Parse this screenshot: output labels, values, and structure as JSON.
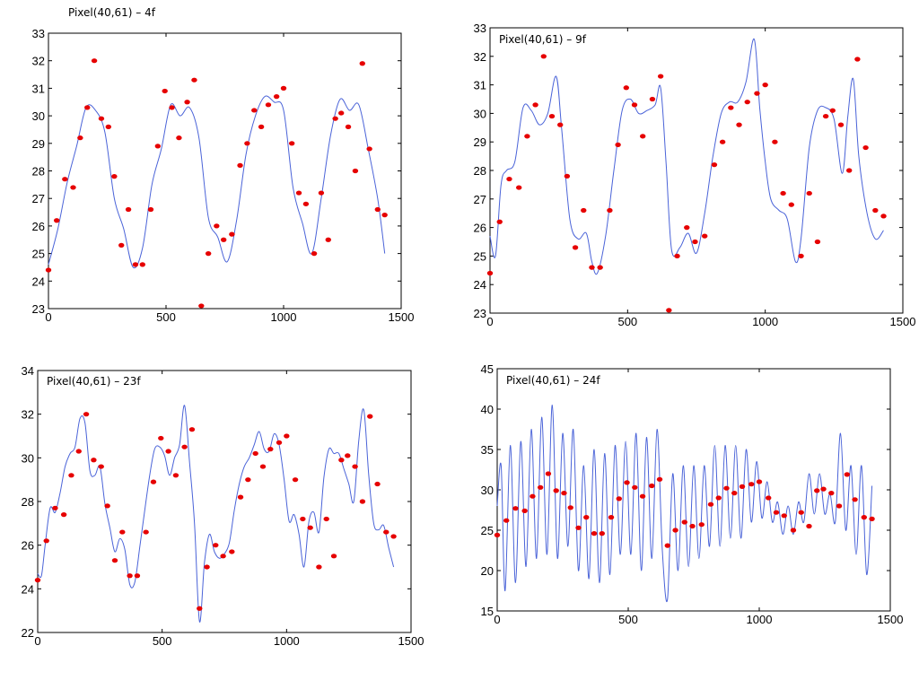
{
  "chart_data": [
    {
      "type": "scatter",
      "title": "Pixel(40,61) – 4f",
      "xlim": [
        0,
        1500
      ],
      "ylim": [
        23,
        33
      ],
      "xticks": [
        0,
        500,
        1000,
        1500
      ],
      "yticks": [
        23,
        24,
        25,
        26,
        27,
        28,
        29,
        30,
        31,
        32,
        33
      ],
      "series": [
        {
          "style": "markers",
          "color": "#e60000",
          "x": [
            0,
            35,
            70,
            105,
            135,
            165,
            195,
            225,
            255,
            280,
            310,
            340,
            370,
            400,
            435,
            465,
            495,
            525,
            555,
            590,
            620,
            650,
            680,
            715,
            745,
            780,
            815,
            845,
            875,
            905,
            935,
            970,
            1000,
            1035,
            1065,
            1095,
            1130,
            1160,
            1190,
            1220,
            1245,
            1275,
            1305,
            1335,
            1365,
            1400,
            1430
          ],
          "y": [
            24.4,
            26.2,
            27.7,
            27.4,
            29.2,
            30.3,
            32.0,
            29.9,
            29.6,
            27.8,
            25.3,
            26.6,
            24.6,
            24.6,
            26.6,
            28.9,
            30.9,
            30.3,
            29.2,
            30.5,
            31.3,
            23.1,
            25.0,
            26.0,
            25.5,
            25.7,
            28.2,
            29.0,
            30.2,
            29.6,
            30.4,
            30.7,
            31.0,
            29.0,
            27.2,
            26.8,
            25.0,
            27.2,
            25.5,
            29.9,
            30.1,
            29.6,
            28.0,
            31.9,
            28.8,
            26.6,
            26.4
          ]
        },
        {
          "style": "line",
          "color": "#4a63d8",
          "smooth": "low",
          "x": [
            0,
            40,
            80,
            120,
            160,
            200,
            240,
            280,
            320,
            360,
            400,
            440,
            480,
            520,
            560,
            600,
            640,
            680,
            720,
            760,
            800,
            840,
            880,
            920,
            960,
            1000,
            1040,
            1080,
            1120,
            1160,
            1200,
            1240,
            1280,
            1320,
            1360,
            1400,
            1430
          ],
          "y": [
            24.6,
            25.9,
            27.6,
            28.9,
            30.3,
            30.2,
            29.4,
            27.0,
            25.9,
            24.5,
            25.2,
            27.5,
            28.8,
            30.4,
            30.0,
            30.3,
            29.2,
            26.3,
            25.6,
            24.7,
            26.2,
            28.6,
            30.0,
            30.7,
            30.5,
            30.2,
            27.4,
            26.1,
            25.0,
            27.0,
            29.3,
            30.6,
            30.2,
            30.4,
            28.8,
            27.0,
            25.0
          ]
        }
      ]
    },
    {
      "type": "scatter",
      "title": "Pixel(40,61) – 9f",
      "xlim": [
        0,
        1500
      ],
      "ylim": [
        23,
        33
      ],
      "xticks": [
        0,
        500,
        1000,
        1500
      ],
      "yticks": [
        23,
        24,
        25,
        26,
        27,
        28,
        29,
        30,
        31,
        32,
        33
      ],
      "series": [
        {
          "style": "markers",
          "color": "#e60000",
          "x": [
            0,
            35,
            70,
            105,
            135,
            165,
            195,
            225,
            255,
            280,
            310,
            340,
            370,
            400,
            435,
            465,
            495,
            525,
            555,
            590,
            620,
            650,
            680,
            715,
            745,
            780,
            815,
            845,
            875,
            905,
            935,
            970,
            1000,
            1035,
            1065,
            1095,
            1130,
            1160,
            1190,
            1220,
            1245,
            1275,
            1305,
            1335,
            1365,
            1400,
            1430
          ],
          "y": [
            24.4,
            26.2,
            27.7,
            27.4,
            29.2,
            30.3,
            32.0,
            29.9,
            29.6,
            27.8,
            25.3,
            26.6,
            24.6,
            24.6,
            26.6,
            28.9,
            30.9,
            30.3,
            29.2,
            30.5,
            31.3,
            23.1,
            25.0,
            26.0,
            25.5,
            25.7,
            28.2,
            29.0,
            30.2,
            29.6,
            30.4,
            30.7,
            31.0,
            29.0,
            27.2,
            26.8,
            25.0,
            27.2,
            25.5,
            29.9,
            30.1,
            29.6,
            28.0,
            31.9,
            28.8,
            26.6,
            26.4
          ]
        },
        {
          "style": "line",
          "color": "#4a63d8",
          "smooth": "mid",
          "x": [
            0,
            20,
            40,
            60,
            90,
            120,
            150,
            180,
            210,
            240,
            260,
            290,
            320,
            350,
            370,
            390,
            420,
            450,
            480,
            510,
            540,
            570,
            600,
            620,
            640,
            660,
            690,
            720,
            750,
            780,
            810,
            840,
            870,
            900,
            930,
            960,
            980,
            1000,
            1020,
            1050,
            1080,
            1110,
            1130,
            1160,
            1190,
            1220,
            1250,
            1280,
            1300,
            1320,
            1340,
            1370,
            1400,
            1430
          ],
          "y": [
            25.7,
            25.0,
            27.5,
            28.0,
            28.3,
            30.2,
            30.1,
            29.6,
            30.0,
            31.3,
            29.5,
            26.3,
            25.6,
            25.8,
            24.8,
            24.4,
            25.7,
            28.0,
            30.1,
            30.5,
            30.0,
            30.1,
            30.3,
            30.9,
            28.2,
            25.2,
            25.3,
            25.8,
            25.1,
            26.5,
            28.5,
            30.0,
            30.4,
            30.4,
            31.1,
            32.6,
            30.2,
            28.3,
            27.0,
            26.6,
            26.3,
            24.8,
            25.6,
            28.8,
            30.1,
            30.2,
            29.8,
            27.9,
            29.9,
            31.2,
            28.5,
            26.5,
            25.6,
            25.9
          ]
        }
      ]
    },
    {
      "type": "scatter",
      "title": "Pixel(40,61) – 23f",
      "xlim": [
        0,
        1500
      ],
      "ylim": [
        22,
        34
      ],
      "xticks": [
        0,
        500,
        1000,
        1500
      ],
      "yticks": [
        22,
        24,
        26,
        28,
        30,
        32,
        34
      ],
      "series": [
        {
          "style": "markers",
          "color": "#e60000",
          "x": [
            0,
            35,
            70,
            105,
            135,
            165,
            195,
            225,
            255,
            280,
            310,
            340,
            370,
            400,
            435,
            465,
            495,
            525,
            555,
            590,
            620,
            650,
            680,
            715,
            745,
            780,
            815,
            845,
            875,
            905,
            935,
            970,
            1000,
            1035,
            1065,
            1095,
            1130,
            1160,
            1190,
            1220,
            1245,
            1275,
            1305,
            1335,
            1365,
            1400,
            1430
          ],
          "y": [
            24.4,
            26.2,
            27.7,
            27.4,
            29.2,
            30.3,
            32.0,
            29.9,
            29.6,
            27.8,
            25.3,
            26.6,
            24.6,
            24.6,
            26.6,
            28.9,
            30.9,
            30.3,
            29.2,
            30.5,
            31.3,
            23.1,
            25.0,
            26.0,
            25.5,
            25.7,
            28.2,
            29.0,
            30.2,
            29.6,
            30.4,
            30.7,
            31.0,
            29.0,
            27.2,
            26.8,
            25.0,
            27.2,
            25.5,
            29.9,
            30.1,
            29.6,
            28.0,
            31.9,
            28.8,
            26.6,
            26.4
          ]
        },
        {
          "style": "line",
          "color": "#4a63d8",
          "smooth": "high",
          "x": [
            0,
            15,
            30,
            50,
            70,
            90,
            110,
            130,
            150,
            170,
            190,
            210,
            230,
            250,
            270,
            290,
            310,
            330,
            350,
            370,
            390,
            410,
            430,
            450,
            470,
            490,
            510,
            530,
            550,
            570,
            590,
            610,
            630,
            650,
            670,
            690,
            710,
            730,
            750,
            770,
            790,
            810,
            830,
            850,
            870,
            890,
            910,
            930,
            950,
            970,
            990,
            1010,
            1030,
            1050,
            1070,
            1090,
            1110,
            1130,
            1150,
            1170,
            1190,
            1210,
            1230,
            1250,
            1270,
            1290,
            1310,
            1330,
            1350,
            1370,
            1390,
            1410,
            1430
          ],
          "y": [
            24.7,
            24.6,
            26.0,
            27.7,
            27.5,
            28.4,
            29.6,
            30.2,
            30.5,
            31.8,
            31.6,
            29.4,
            29.2,
            29.6,
            27.9,
            26.8,
            25.7,
            26.3,
            25.8,
            24.2,
            24.3,
            25.9,
            27.6,
            29.2,
            30.4,
            30.5,
            30.1,
            29.2,
            30.0,
            30.6,
            32.4,
            29.8,
            27.0,
            22.5,
            25.2,
            26.5,
            25.7,
            25.4,
            25.6,
            26.1,
            27.6,
            28.8,
            29.6,
            30.0,
            30.6,
            31.2,
            30.4,
            30.3,
            31.1,
            30.6,
            29.0,
            27.1,
            27.4,
            26.5,
            25.0,
            27.1,
            27.5,
            26.6,
            29.1,
            30.4,
            30.2,
            30.2,
            29.5,
            28.8,
            28.0,
            30.8,
            32.2,
            29.2,
            27.0,
            26.7,
            26.9,
            25.9,
            25.0
          ]
        }
      ]
    },
    {
      "type": "scatter",
      "title": "Pixel(40,61) – 24f",
      "xlim": [
        0,
        1500
      ],
      "ylim": [
        15,
        45
      ],
      "xticks": [
        0,
        500,
        1000,
        1500
      ],
      "yticks": [
        15,
        20,
        25,
        30,
        35,
        40,
        45
      ],
      "series": [
        {
          "style": "markers",
          "color": "#e60000",
          "x": [
            0,
            35,
            70,
            105,
            135,
            165,
            195,
            225,
            255,
            280,
            310,
            340,
            370,
            400,
            435,
            465,
            495,
            525,
            555,
            590,
            620,
            650,
            680,
            715,
            745,
            780,
            815,
            845,
            875,
            905,
            935,
            970,
            1000,
            1035,
            1065,
            1095,
            1130,
            1160,
            1190,
            1220,
            1245,
            1275,
            1305,
            1335,
            1365,
            1400,
            1430
          ],
          "y": [
            24.4,
            26.2,
            27.7,
            27.4,
            29.2,
            30.3,
            32.0,
            29.9,
            29.6,
            27.8,
            25.3,
            26.6,
            24.6,
            24.6,
            26.6,
            28.9,
            30.9,
            30.3,
            29.2,
            30.5,
            31.3,
            23.1,
            25.0,
            26.0,
            25.5,
            25.7,
            28.2,
            29.0,
            30.2,
            29.6,
            30.4,
            30.7,
            31.0,
            29.0,
            27.2,
            26.8,
            25.0,
            27.2,
            25.5,
            29.9,
            30.1,
            29.6,
            28.0,
            31.9,
            28.8,
            26.6,
            26.4
          ]
        },
        {
          "style": "line",
          "color": "#4a63d8",
          "note": "oscillating",
          "x": [
            0,
            15,
            30,
            50,
            70,
            90,
            110,
            130,
            150,
            170,
            190,
            210,
            230,
            250,
            270,
            290,
            310,
            330,
            350,
            370,
            390,
            410,
            430,
            450,
            470,
            490,
            510,
            530,
            550,
            570,
            590,
            610,
            630,
            650,
            670,
            690,
            710,
            730,
            750,
            770,
            790,
            810,
            830,
            850,
            870,
            890,
            910,
            930,
            950,
            970,
            990,
            1010,
            1030,
            1050,
            1070,
            1090,
            1110,
            1130,
            1150,
            1170,
            1190,
            1210,
            1230,
            1250,
            1270,
            1290,
            1310,
            1330,
            1350,
            1370,
            1390,
            1410,
            1430
          ],
          "y": [
            28,
            33,
            17.5,
            35.5,
            18.5,
            36,
            20.5,
            37.5,
            21.5,
            39,
            22,
            40.5,
            21.5,
            37,
            23,
            37.5,
            20,
            33,
            19,
            35,
            18.5,
            34.5,
            19.5,
            35.5,
            22,
            36,
            22,
            37,
            20,
            36.5,
            21.5,
            37.5,
            22.5,
            16.5,
            32,
            20,
            33,
            20.5,
            33,
            21.5,
            33,
            23,
            35.5,
            23,
            35.5,
            24,
            35.5,
            24,
            35,
            26,
            33.5,
            26.5,
            31,
            26,
            28.5,
            24.5,
            28,
            24.5,
            28.5,
            26,
            32,
            27,
            32,
            27,
            29.5,
            26,
            37,
            25,
            33,
            22,
            33,
            19.5,
            30.5
          ]
        }
      ]
    }
  ]
}
